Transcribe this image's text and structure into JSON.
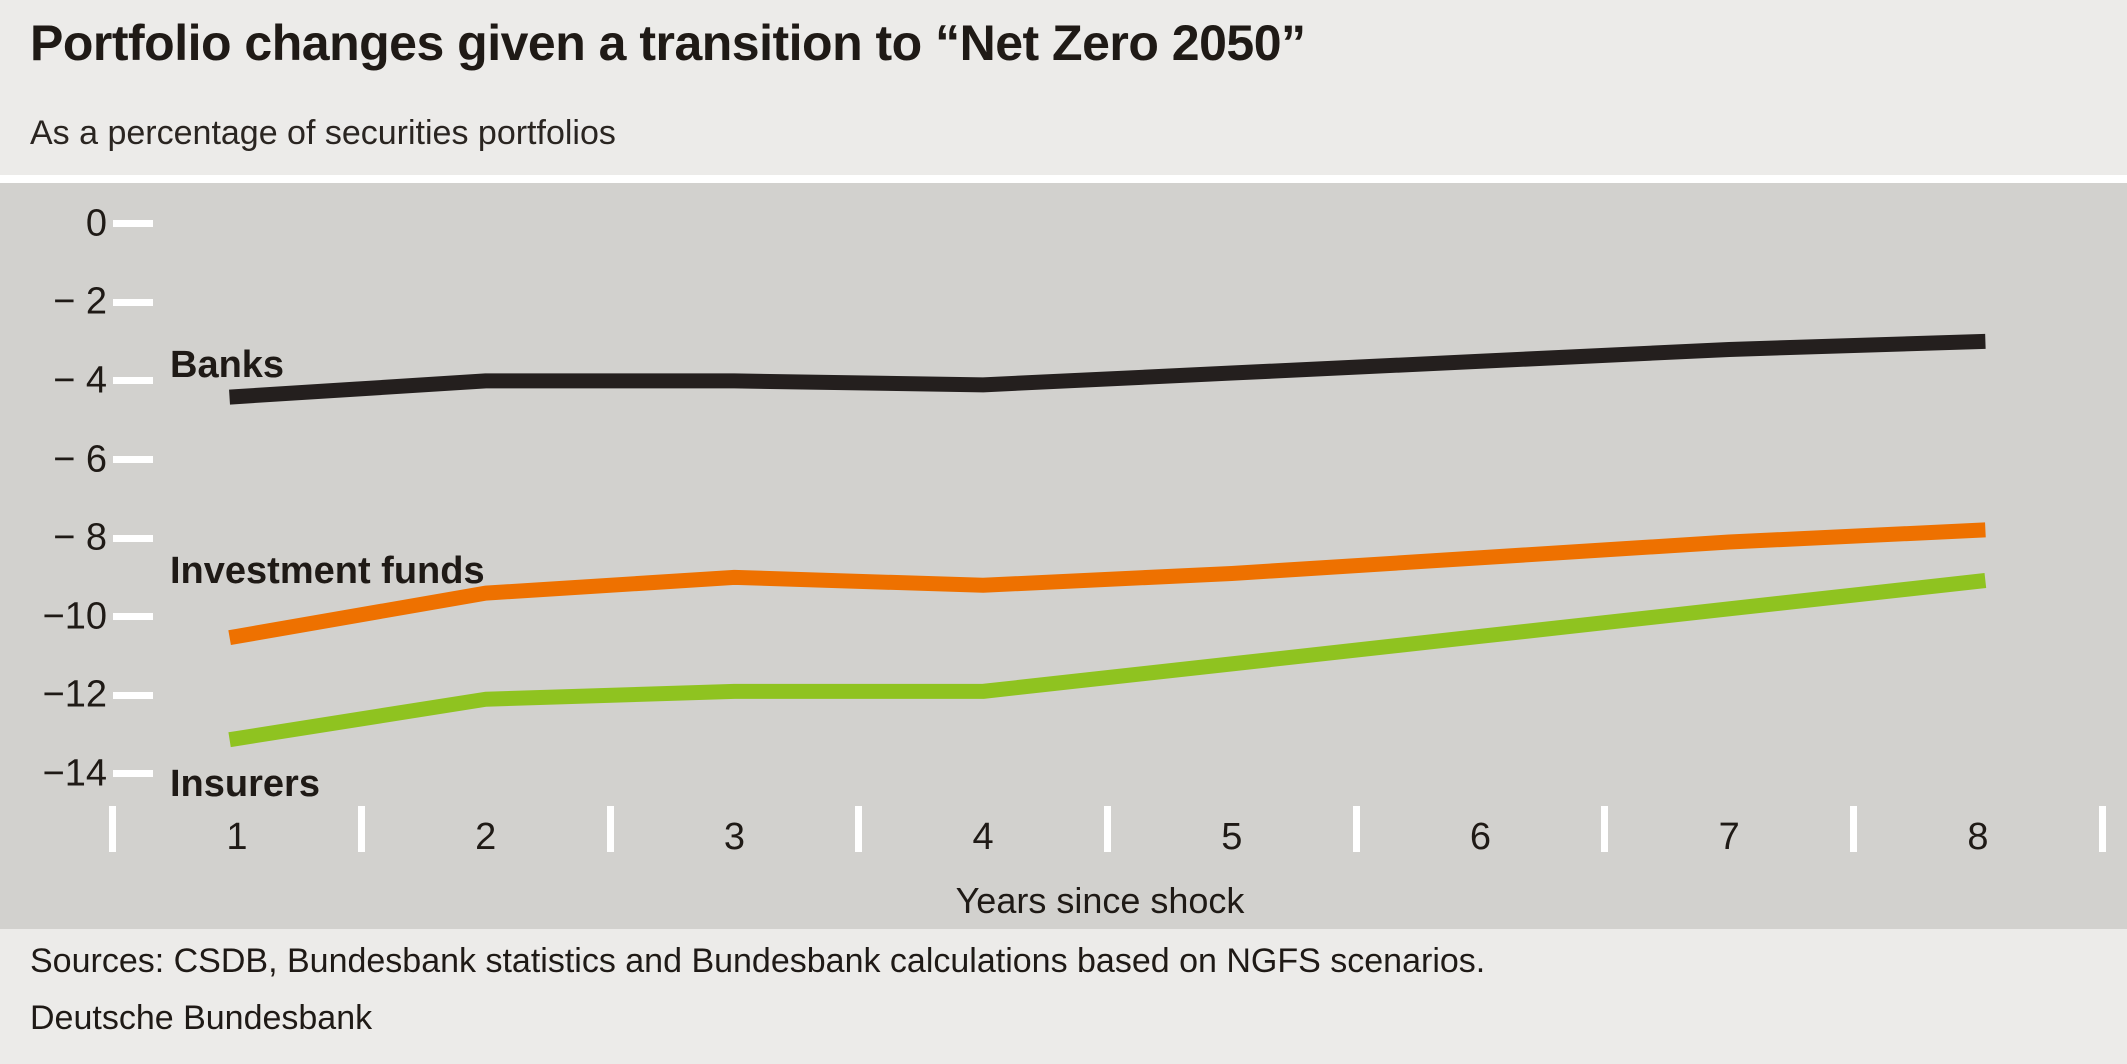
{
  "header": {
    "title": "Portfolio changes given a transition to “Net Zero 2050”",
    "subtitle": "As a percentage of securities portfolios"
  },
  "footer": {
    "sources": "Sources: CSDB, Bundesbank statistics and Bundesbank calculations based on NGFS scenarios.",
    "publisher": "Deutsche Bundesbank"
  },
  "chart_data": {
    "type": "line",
    "x": [
      1,
      2,
      3,
      4,
      5,
      6,
      7,
      8
    ],
    "xlabel": "Years since shock",
    "y_ticks": [
      0,
      -2,
      -4,
      -6,
      -8,
      -10,
      -12,
      -14
    ],
    "y_tick_labels": [
      "0",
      "− 2",
      "− 4",
      "− 6",
      "− 8",
      "−10",
      "−12",
      "−14"
    ],
    "ylim": [
      -14.8,
      0.4
    ],
    "grid": false,
    "legend_position": "inline-labels-left-of-lines",
    "x_ticks_between_years": true,
    "series": [
      {
        "name": "Banks",
        "color": "#241f1e",
        "values": [
          -4.4,
          -4.0,
          -4.0,
          -4.1,
          -3.8,
          -3.5,
          -3.2,
          -3.0
        ]
      },
      {
        "name": "Investment funds",
        "color": "#ee7100",
        "values": [
          -10.5,
          -9.4,
          -9.0,
          -9.2,
          -8.9,
          -8.5,
          -8.1,
          -7.8
        ]
      },
      {
        "name": "Insurers",
        "color": "#8fc320",
        "values": [
          -13.1,
          -12.1,
          -11.9,
          -11.9,
          -11.2,
          -10.5,
          -9.8,
          -9.1
        ]
      }
    ]
  },
  "colors": {
    "header_footer_background": "#ecebe9",
    "plot_background": "#d2d1ce",
    "tick_marks": "#ffffff",
    "text": "#1f1a16",
    "banks_line": "#241f1e",
    "investment_funds_line": "#ee7100",
    "insurers_line": "#8fc320"
  }
}
